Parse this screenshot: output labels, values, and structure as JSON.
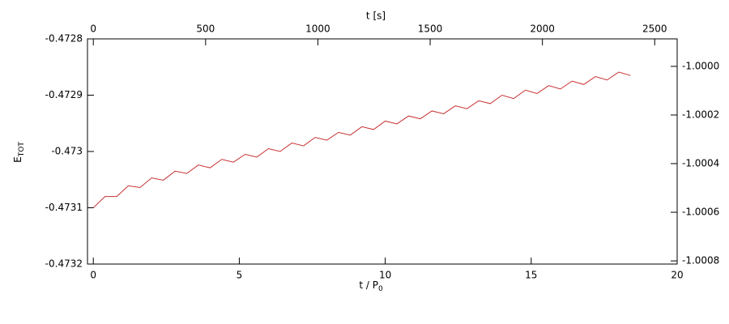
{
  "chart_data": {
    "type": "line",
    "xlabel": {
      "text": "t / P",
      "sub": "0"
    },
    "ylabel": {
      "text": "E",
      "sub": "TOT"
    },
    "x2label": "t [s]",
    "xlim": [
      -0.2,
      20
    ],
    "xticks": [
      0,
      5,
      10,
      15,
      20
    ],
    "x2lim": [
      -26,
      2600
    ],
    "x2ticks": [
      0,
      500,
      1000,
      1500,
      2000,
      2500
    ],
    "ylim": [
      -0.4732,
      -0.4728
    ],
    "yticks": [
      -0.4732,
      -0.4731,
      -0.473,
      -0.4729,
      -0.4728
    ],
    "y2lim": [
      -1.000813,
      -0.999887
    ],
    "y2ticks": [
      -1.0008,
      -1.0006,
      -1.0004,
      -1.0002,
      {
        "value": -1,
        "label": "-1.0000"
      }
    ],
    "series": [
      {
        "color": "#c83232",
        "x": [
          0,
          0.4,
          0.8,
          1.2,
          1.6,
          2.0,
          2.4,
          2.8,
          3.2,
          3.6,
          4.0,
          4.4,
          4.8,
          5.2,
          5.6,
          6.0,
          6.4,
          6.8,
          7.2,
          7.6,
          8.0,
          8.4,
          8.8,
          9.2,
          9.6,
          10.0,
          10.4,
          10.8,
          11.2,
          11.6,
          12.0,
          12.4,
          12.8,
          13.2,
          13.6,
          14.0,
          14.4,
          14.8,
          15.2,
          15.6,
          16.0,
          16.4,
          16.8,
          17.2,
          17.6,
          18.0,
          18.4
        ],
        "values": [
          -0.4731,
          -0.47308,
          -0.47308,
          -0.473061,
          -0.473064,
          -0.473047,
          -0.473051,
          -0.473035,
          -0.473039,
          -0.473024,
          -0.473029,
          -0.473014,
          -0.473019,
          -0.473005,
          -0.47301,
          -0.472995,
          -0.473,
          -0.472985,
          -0.47299,
          -0.472975,
          -0.47298,
          -0.472966,
          -0.472971,
          -0.472956,
          -0.472961,
          -0.472946,
          -0.472951,
          -0.472937,
          -0.472942,
          -0.472928,
          -0.472933,
          -0.472919,
          -0.472924,
          -0.47291,
          -0.472915,
          -0.4729,
          -0.472906,
          -0.472891,
          -0.472897,
          -0.472883,
          -0.472889,
          -0.472875,
          -0.472881,
          -0.472867,
          -0.472873,
          -0.472859,
          -0.472865
        ]
      }
    ]
  }
}
